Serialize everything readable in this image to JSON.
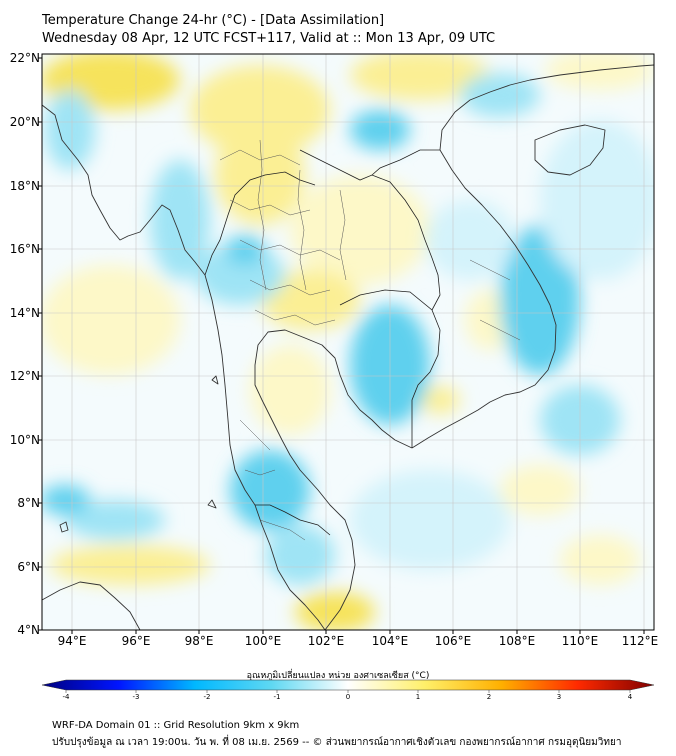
{
  "header": {
    "title": "Temperature Change 24-hr (°C) - [Data Assimilation]",
    "subtitle": "Wednesday 08 Apr, 12 UTC FCST+117, Valid at :: Mon 13 Apr, 09 UTC"
  },
  "map": {
    "lat_labels": [
      "22°N",
      "20°N",
      "18°N",
      "16°N",
      "14°N",
      "12°N",
      "10°N",
      "8°N",
      "6°N",
      "4°N"
    ],
    "lon_labels": [
      "94°E",
      "96°E",
      "98°E",
      "100°E",
      "102°E",
      "104°E",
      "106°E",
      "108°E",
      "110°E",
      "112°E"
    ],
    "colors": {
      "cool_light": "#d4f3fb",
      "cool": "#9fe4f5",
      "cool_strong": "#5fd0ee",
      "warm_light": "#fdf8c8",
      "warm": "#fbef94",
      "warm_strong": "#f6e35c"
    }
  },
  "colorbar": {
    "label": "อุณหภูมิเปลี่ยนแปลง หน่วย องศาเซลเซียส (°C)",
    "ticks": [
      "-4",
      "-3",
      "-2",
      "-1",
      "0",
      "1",
      "2",
      "3",
      "4"
    ],
    "colors": [
      "#00007f",
      "#0015ff",
      "#00b8ff",
      "#5fd8f2",
      "#ffffff",
      "#fff06a",
      "#ffb000",
      "#ff2a00",
      "#7f0000"
    ]
  },
  "footer": {
    "line1": "WRF-DA Domain 01 :: Grid Resolution 9km x 9km",
    "line2": "ปรับปรุงข้อมูล ณ เวลา 19:00น. วัน พ. ที่ 08 เม.ย. 2569 -- © ส่วนพยากรณ์อากาศเชิงตัวเลข กองพยากรณ์อากาศ กรมอุตุนิยมวิทยา"
  }
}
